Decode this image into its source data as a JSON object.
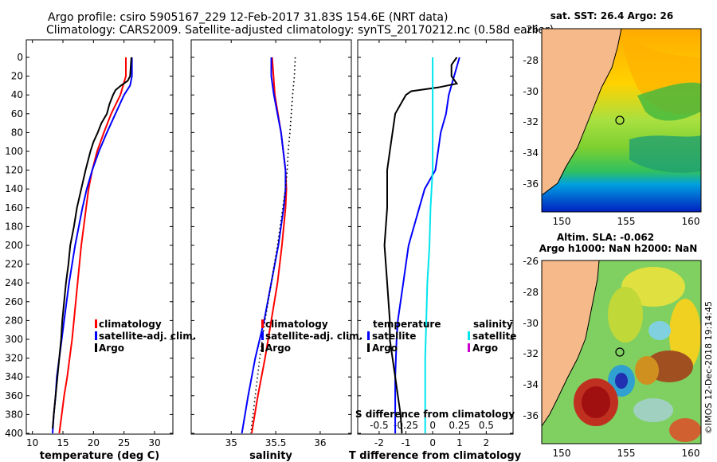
{
  "title": {
    "line1": "Argo profile: csiro 5905167_229 12-Feb-2017 31.83S 154.6E (NRT data)",
    "line2": "Climatology: CARS2009. Satellite-adjusted climatology: synTS_20170212.nc (0.58d earlier)"
  },
  "colors": {
    "climatology": "#ff0000",
    "satellite": "#0000ff",
    "argo": "#000000",
    "salinity_sat": "#00e5ee",
    "salinity_argo": "#cc00cc",
    "land": "#f5b98a"
  },
  "chart_data": [
    {
      "type": "line",
      "id": "temperature",
      "xlabel": "temperature (deg C)",
      "ylabel": "depth",
      "xlim": [
        9,
        33
      ],
      "ylim": [
        400,
        0
      ],
      "xticks": [
        10,
        15,
        20,
        25,
        30
      ],
      "yticks": [
        0,
        20,
        40,
        60,
        80,
        100,
        120,
        140,
        160,
        180,
        200,
        220,
        240,
        260,
        280,
        300,
        320,
        340,
        360,
        380,
        400
      ],
      "legend": [
        "climatology",
        "satellite-adj. clim.",
        "Argo"
      ],
      "series": [
        {
          "name": "climatology",
          "color": "#ff0000",
          "depth": [
            0,
            20,
            40,
            60,
            80,
            100,
            120,
            140,
            160,
            180,
            200,
            220,
            240,
            260,
            280,
            300,
            320,
            340,
            360,
            380,
            400
          ],
          "values": [
            25.3,
            25.3,
            24.4,
            22.9,
            21.7,
            20.6,
            19.8,
            19.2,
            18.8,
            18.4,
            18.0,
            17.7,
            17.4,
            17.1,
            16.8,
            16.5,
            16.1,
            15.7,
            15.2,
            14.8,
            14.4
          ]
        },
        {
          "name": "satellite-adj. clim.",
          "color": "#0000ff",
          "depth": [
            0,
            20,
            30,
            40,
            60,
            80,
            100,
            120,
            140,
            160,
            180,
            200,
            220,
            240,
            260,
            280,
            300,
            320,
            340,
            360,
            380,
            400
          ],
          "values": [
            26.3,
            26.3,
            26.0,
            25.0,
            23.6,
            22.2,
            20.9,
            19.8,
            18.9,
            18.2,
            17.6,
            17.0,
            16.5,
            16.0,
            15.6,
            15.2,
            14.8,
            14.4,
            14.0,
            13.8,
            13.5,
            13.3
          ]
        },
        {
          "name": "Argo",
          "color": "#000000",
          "depth": [
            0,
            10,
            20,
            25,
            30,
            35,
            40,
            50,
            60,
            70,
            80,
            90,
            100,
            120,
            140,
            160,
            180,
            200,
            220,
            240,
            260,
            280,
            300,
            320,
            340,
            360,
            380,
            395
          ],
          "values": [
            26.2,
            26.1,
            26.0,
            25.6,
            24.5,
            23.6,
            23.2,
            22.6,
            22.2,
            21.3,
            20.7,
            20.0,
            19.5,
            18.7,
            18.0,
            17.3,
            16.8,
            16.2,
            15.9,
            15.5,
            15.2,
            14.9,
            14.7,
            14.4,
            14.1,
            13.8,
            13.5,
            13.3
          ]
        }
      ]
    },
    {
      "type": "line",
      "id": "salinity",
      "xlabel": "salinity",
      "xlim": [
        34.55,
        36.35
      ],
      "ylim": [
        400,
        0
      ],
      "xticks": [
        35,
        35.5,
        36
      ],
      "legend": [
        "climatology",
        "satellite-adj. clim.",
        "Argo"
      ],
      "series": [
        {
          "name": "climatology",
          "color": "#ff0000",
          "depth": [
            0,
            40,
            80,
            120,
            140,
            160,
            200,
            240,
            280,
            320,
            360,
            400
          ],
          "values": [
            35.46,
            35.49,
            35.56,
            35.61,
            35.62,
            35.61,
            35.57,
            35.52,
            35.45,
            35.38,
            35.3,
            35.23
          ]
        },
        {
          "name": "satellite-adj. clim.",
          "color": "#0000ff",
          "depth": [
            0,
            20,
            40,
            80,
            120,
            140,
            160,
            200,
            240,
            280,
            320,
            360,
            400
          ],
          "values": [
            35.45,
            35.45,
            35.48,
            35.56,
            35.61,
            35.61,
            35.59,
            35.53,
            35.45,
            35.37,
            35.27,
            35.19,
            35.12
          ]
        },
        {
          "name": "Argo",
          "color": "#000000",
          "style": "dotted",
          "depth": [
            0,
            20,
            40,
            80,
            100,
            120,
            140,
            160,
            200,
            240,
            280,
            320,
            360,
            400
          ],
          "values": [
            35.72,
            35.71,
            35.69,
            35.66,
            35.64,
            35.63,
            35.61,
            35.58,
            35.52,
            35.45,
            35.38,
            35.32,
            35.27,
            35.22
          ]
        }
      ]
    },
    {
      "type": "line",
      "id": "difference",
      "xlabel": "T difference from climatology",
      "xlabel_top": "S difference from climatology",
      "xlim": [
        -2.8,
        3.0
      ],
      "ylim": [
        400,
        0
      ],
      "xticks": [
        -2,
        -1,
        0,
        1,
        2
      ],
      "xticks_top": [
        -0.5,
        -0.25,
        0,
        0.25,
        0.5
      ],
      "xticks_top_labels": [
        "-0.5",
        "-0.25",
        "0",
        "0.25",
        "0.5"
      ],
      "legend_temperature": [
        "satellite",
        "Argo"
      ],
      "legend_salinity": [
        "satellite",
        "Argo"
      ],
      "legend_temperature_title": "temperature",
      "legend_salinity_title": "salinity",
      "series": [
        {
          "name": "T satellite",
          "color": "#0000ff",
          "depth": [
            0,
            20,
            40,
            60,
            80,
            100,
            120,
            140,
            160,
            180,
            200,
            220,
            240,
            260,
            280,
            300,
            340,
            380,
            400
          ],
          "values": [
            1.0,
            0.8,
            0.6,
            0.5,
            0.3,
            0.2,
            0.1,
            -0.3,
            -0.5,
            -0.7,
            -0.9,
            -1.0,
            -1.1,
            -1.2,
            -1.3,
            -1.35,
            -1.4,
            -1.4,
            -1.4
          ]
        },
        {
          "name": "T Argo",
          "color": "#000000",
          "depth": [
            0,
            8,
            20,
            28,
            32,
            36,
            40,
            60,
            80,
            100,
            120,
            160,
            200,
            240,
            280,
            300,
            320,
            340,
            360,
            380,
            400
          ],
          "values": [
            0.9,
            0.7,
            0.7,
            0.9,
            0.2,
            -0.8,
            -1.0,
            -1.4,
            -1.5,
            -1.6,
            -1.7,
            -1.7,
            -1.8,
            -1.7,
            -1.6,
            -1.6,
            -1.5,
            -1.4,
            -1.3,
            -1.2,
            -1.15
          ]
        },
        {
          "name": "S satellite",
          "color": "#00e5ee",
          "depth": [
            0,
            40,
            80,
            120,
            160,
            200,
            240,
            280,
            320,
            360,
            400
          ],
          "values": [
            0.0,
            0.0,
            0.0,
            0.0,
            -0.02,
            -0.03,
            -0.05,
            -0.06,
            -0.07,
            -0.07,
            -0.07
          ]
        }
      ]
    }
  ],
  "maps": {
    "sst": {
      "title": "sat. SST: 26.4 Argo: 26",
      "yticks": [
        "-26",
        "-28",
        "-30",
        "-32",
        "-34",
        "-36"
      ],
      "xticks": [
        "150",
        "155",
        "160"
      ]
    },
    "sla": {
      "title1": "Altim. SLA: -0.062",
      "title2": "Argo h1000: NaN h2000: NaN",
      "yticks": [
        "-26",
        "-28",
        "-30",
        "-32",
        "-34",
        "-36"
      ],
      "xticks": [
        "150",
        "155",
        "160"
      ]
    }
  },
  "credit": "©IMOS 12-Dec-2018 19:14:45"
}
